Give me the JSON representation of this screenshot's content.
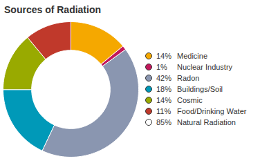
{
  "chart_data": {
    "type": "pie",
    "title": "Sources of Radiation",
    "categories": [
      "Medicine",
      "Nuclear Industry",
      "Radon",
      "Buildings/Soil",
      "Cosmic",
      "Food/Drinking Water"
    ],
    "values": [
      14,
      1,
      42,
      18,
      14,
      11
    ],
    "value_labels": [
      "14%",
      "1%",
      "42%",
      "18%",
      "14%",
      "11%"
    ],
    "colors": [
      "#F5A800",
      "#C2185B",
      "#8A96B0",
      "#0099B8",
      "#99AA00",
      "#C0392B"
    ],
    "legend": "right",
    "extra_legend_entry": {
      "label": "Natural Radiation",
      "value": 85,
      "value_label": "85%",
      "color": "#ffffff"
    }
  }
}
